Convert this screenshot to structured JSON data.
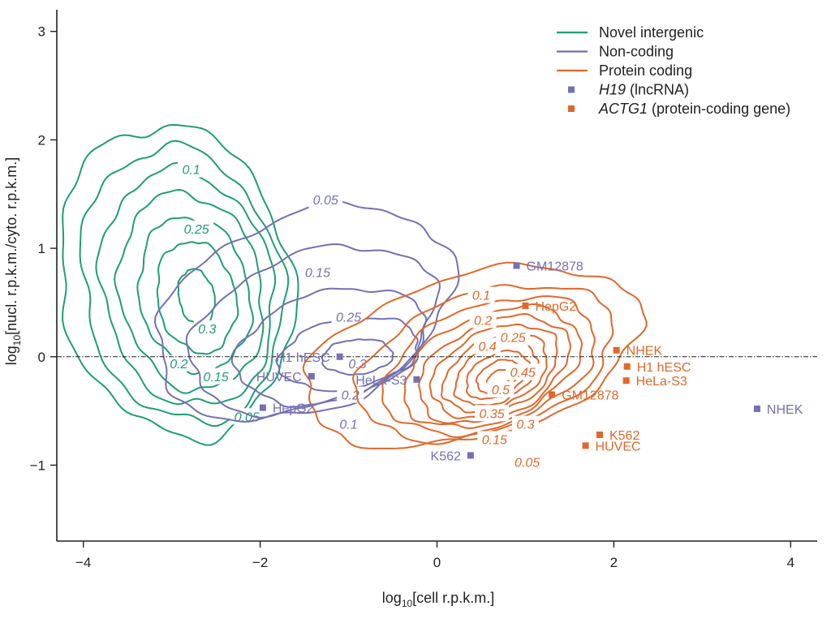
{
  "chart_data": {
    "type": "contour",
    "xlabel_prefix": "log",
    "xlabel_sub": "10",
    "xlabel_suffix": "[cell r.p.k.m.]",
    "ylabel_prefix": "log",
    "ylabel_sub": "10",
    "ylabel_suffix": "[nucl. r.p.k.m./cyto. r.p.k.m.]",
    "xlim": [
      -4.3,
      4.3
    ],
    "ylim": [
      -1.7,
      3.2
    ],
    "x_ticks": [
      {
        "value": -4,
        "label": "−4"
      },
      {
        "value": -2,
        "label": "−2"
      },
      {
        "value": 0,
        "label": "0"
      },
      {
        "value": 2,
        "label": "2"
      },
      {
        "value": 4,
        "label": "4"
      }
    ],
    "y_ticks": [
      {
        "value": -1,
        "label": "−1"
      },
      {
        "value": 0,
        "label": "0"
      },
      {
        "value": 1,
        "label": "1"
      },
      {
        "value": 2,
        "label": "2"
      },
      {
        "value": 3,
        "label": "3"
      }
    ],
    "reference_line": {
      "y": 0,
      "style": "dash-dot"
    },
    "legend": {
      "placement": "top-right",
      "entries": [
        {
          "kind": "line",
          "color": "#1e9e78",
          "text": "Novel intergenic",
          "italic": ""
        },
        {
          "kind": "line",
          "color": "#7470b4",
          "text": "Non-coding",
          "italic": ""
        },
        {
          "kind": "line",
          "color": "#e0682a",
          "text": "Protein coding",
          "italic": ""
        },
        {
          "kind": "marker",
          "color": "#7470b4",
          "italic": "H19",
          "text": " (lncRNA)"
        },
        {
          "kind": "marker",
          "color": "#e0682a",
          "italic": "ACTG1",
          "text": " (protein-coding gene)"
        }
      ]
    },
    "series": [
      {
        "id": "novel-intergenic",
        "color": "#1e9e78",
        "contours": [
          {
            "cx": -2.95,
            "cy": 0.7,
            "rx": 1.3,
            "ry": 1.45,
            "rot": -12
          },
          {
            "cx": -2.88,
            "cy": 0.66,
            "rx": 1.12,
            "ry": 1.28,
            "rot": -12
          },
          {
            "cx": -2.82,
            "cy": 0.63,
            "rx": 0.96,
            "ry": 1.1,
            "rot": -12
          },
          {
            "cx": -2.78,
            "cy": 0.6,
            "rx": 0.8,
            "ry": 0.92,
            "rot": -12
          },
          {
            "cx": -2.74,
            "cy": 0.58,
            "rx": 0.62,
            "ry": 0.72,
            "rot": -12
          },
          {
            "cx": -2.72,
            "cy": 0.55,
            "rx": 0.44,
            "ry": 0.52,
            "rot": -12
          },
          {
            "cx": -2.72,
            "cy": 0.55,
            "rx": 0.2,
            "ry": 0.26,
            "rot": -12
          }
        ],
        "labels": [
          {
            "text": "0.1",
            "x": -2.78,
            "y": 1.73
          },
          {
            "text": "0.25",
            "x": -2.72,
            "y": 1.18
          },
          {
            "text": "0.3",
            "x": -2.6,
            "y": 0.26
          },
          {
            "text": "0.2",
            "x": -2.92,
            "y": -0.06
          },
          {
            "text": "0.15",
            "x": -2.5,
            "y": -0.18
          },
          {
            "text": "0.05",
            "x": -2.15,
            "y": -0.55
          }
        ]
      },
      {
        "id": "non-coding",
        "color": "#7470b4",
        "contours": [
          {
            "cx": -1.5,
            "cy": 0.4,
            "rx": 1.75,
            "ry": 0.9,
            "rot": -22
          },
          {
            "cx": -1.4,
            "cy": 0.25,
            "rx": 1.45,
            "ry": 0.7,
            "rot": -20
          },
          {
            "cx": -1.2,
            "cy": 0.1,
            "rx": 1.1,
            "ry": 0.5,
            "rot": -15
          },
          {
            "cx": -1.0,
            "cy": 0.03,
            "rx": 0.8,
            "ry": 0.32,
            "rot": -10
          },
          {
            "cx": -0.9,
            "cy": 0.0,
            "rx": 0.4,
            "ry": 0.16,
            "rot": -5
          }
        ],
        "labels": [
          {
            "text": "0.05",
            "x": -1.26,
            "y": 1.45
          },
          {
            "text": "0.15",
            "x": -1.35,
            "y": 0.78
          },
          {
            "text": "0.25",
            "x": -1.0,
            "y": 0.37
          },
          {
            "text": "0.3",
            "x": -0.9,
            "y": -0.06
          },
          {
            "text": "0.2",
            "x": -0.98,
            "y": -0.35
          },
          {
            "text": "0.1",
            "x": -1.0,
            "y": -0.62
          }
        ]
      },
      {
        "id": "protein-coding",
        "color": "#e0682a",
        "contours": [
          {
            "cx": 0.4,
            "cy": 0.0,
            "rx": 1.95,
            "ry": 0.75,
            "rot": -15
          },
          {
            "cx": 0.55,
            "cy": -0.05,
            "rx": 1.5,
            "ry": 0.64,
            "rot": -18
          },
          {
            "cx": 0.6,
            "cy": -0.08,
            "rx": 1.25,
            "ry": 0.56,
            "rot": -20
          },
          {
            "cx": 0.62,
            "cy": -0.1,
            "rx": 1.05,
            "ry": 0.49,
            "rot": -22
          },
          {
            "cx": 0.64,
            "cy": -0.12,
            "rx": 0.9,
            "ry": 0.43,
            "rot": -24
          },
          {
            "cx": 0.65,
            "cy": -0.13,
            "rx": 0.76,
            "ry": 0.37,
            "rot": -25
          },
          {
            "cx": 0.66,
            "cy": -0.15,
            "rx": 0.63,
            "ry": 0.31,
            "rot": -26
          },
          {
            "cx": 0.67,
            "cy": -0.16,
            "rx": 0.5,
            "ry": 0.25,
            "rot": -27
          },
          {
            "cx": 0.68,
            "cy": -0.17,
            "rx": 0.38,
            "ry": 0.19,
            "rot": -28
          },
          {
            "cx": 0.69,
            "cy": -0.18,
            "rx": 0.26,
            "ry": 0.13,
            "rot": -28
          },
          {
            "cx": 0.7,
            "cy": -0.2,
            "rx": 0.14,
            "ry": 0.07,
            "rot": -28
          }
        ],
        "labels": [
          {
            "text": "0.1",
            "x": 0.5,
            "y": 0.57
          },
          {
            "text": "0.2",
            "x": 0.52,
            "y": 0.34
          },
          {
            "text": "0.25",
            "x": 0.86,
            "y": 0.18
          },
          {
            "text": "0.4",
            "x": 0.57,
            "y": 0.1
          },
          {
            "text": "0.45",
            "x": 0.97,
            "y": -0.14
          },
          {
            "text": "0.5",
            "x": 0.72,
            "y": -0.3
          },
          {
            "text": "0.35",
            "x": 0.62,
            "y": -0.52
          },
          {
            "text": "0.3",
            "x": 1.0,
            "y": -0.62
          },
          {
            "text": "0.15",
            "x": 0.65,
            "y": -0.76
          },
          {
            "text": "0.05",
            "x": 1.02,
            "y": -0.97
          }
        ]
      }
    ],
    "points": [
      {
        "gene": "H19",
        "label": "GM12878",
        "x": 0.9,
        "y": 0.84,
        "anchor": "start"
      },
      {
        "gene": "H19",
        "label": "H1 hESC",
        "x": -1.1,
        "y": 0.0,
        "anchor": "end"
      },
      {
        "gene": "H19",
        "label": "HUVEC",
        "x": -1.42,
        "y": -0.18,
        "anchor": "end"
      },
      {
        "gene": "H19",
        "label": "HeLa-S3",
        "x": -0.23,
        "y": -0.21,
        "anchor": "end"
      },
      {
        "gene": "H19",
        "label": "HepG2",
        "x": -1.97,
        "y": -0.47,
        "anchor": "start"
      },
      {
        "gene": "H19",
        "label": "K562",
        "x": 0.38,
        "y": -0.91,
        "anchor": "end"
      },
      {
        "gene": "H19",
        "label": "NHEK",
        "x": 3.62,
        "y": -0.48,
        "anchor": "start"
      },
      {
        "gene": "ACTG1",
        "label": "HepG2",
        "x": 1.0,
        "y": 0.47,
        "anchor": "start"
      },
      {
        "gene": "ACTG1",
        "label": "NHEK",
        "x": 2.03,
        "y": 0.06,
        "anchor": "start"
      },
      {
        "gene": "ACTG1",
        "label": "H1 hESC",
        "x": 2.15,
        "y": -0.09,
        "anchor": "start"
      },
      {
        "gene": "ACTG1",
        "label": "HeLa-S3",
        "x": 2.14,
        "y": -0.22,
        "anchor": "start"
      },
      {
        "gene": "ACTG1",
        "label": "GM12878",
        "x": 1.3,
        "y": -0.35,
        "anchor": "start"
      },
      {
        "gene": "ACTG1",
        "label": "K562",
        "x": 1.84,
        "y": -0.72,
        "anchor": "start"
      },
      {
        "gene": "ACTG1",
        "label": "HUVEC",
        "x": 1.68,
        "y": -0.82,
        "anchor": "start"
      }
    ],
    "gene_colors": {
      "H19": "#7470b4",
      "ACTG1": "#e0682a"
    }
  }
}
